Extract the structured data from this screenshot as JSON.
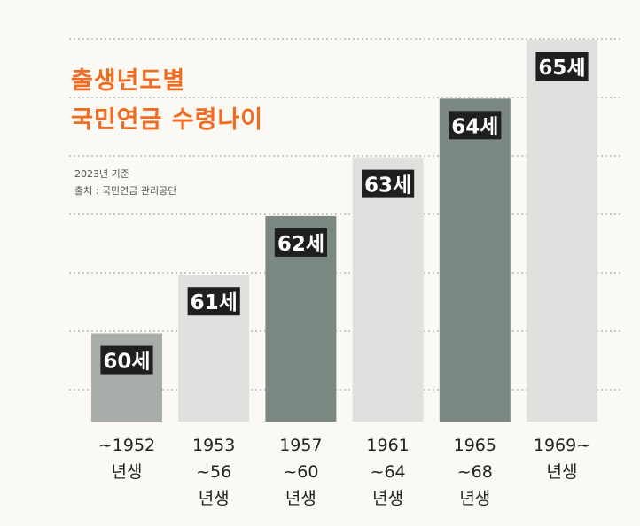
{
  "chart_data": {
    "type": "bar",
    "title": "출생년도별\n국민연금 수령나이",
    "subtitle": "2023년 기준",
    "source": "출처 : 국민연금 관리공단",
    "categories": [
      "~1952\n년생",
      "1953\n~56\n년생",
      "1957\n~60\n년생",
      "1961\n~64\n년생",
      "1965\n~68\n년생",
      "1969~\n년생"
    ],
    "values": [
      60,
      61,
      62,
      63,
      64,
      65
    ],
    "value_labels": [
      "60세",
      "61세",
      "62세",
      "63세",
      "64세",
      "65세"
    ],
    "colors": [
      "#a9adaa",
      "#e0e0de",
      "#7b8982",
      "#e0e0de",
      "#7b8982",
      "#e0e0de"
    ],
    "ylim": [
      58.5,
      65
    ]
  }
}
